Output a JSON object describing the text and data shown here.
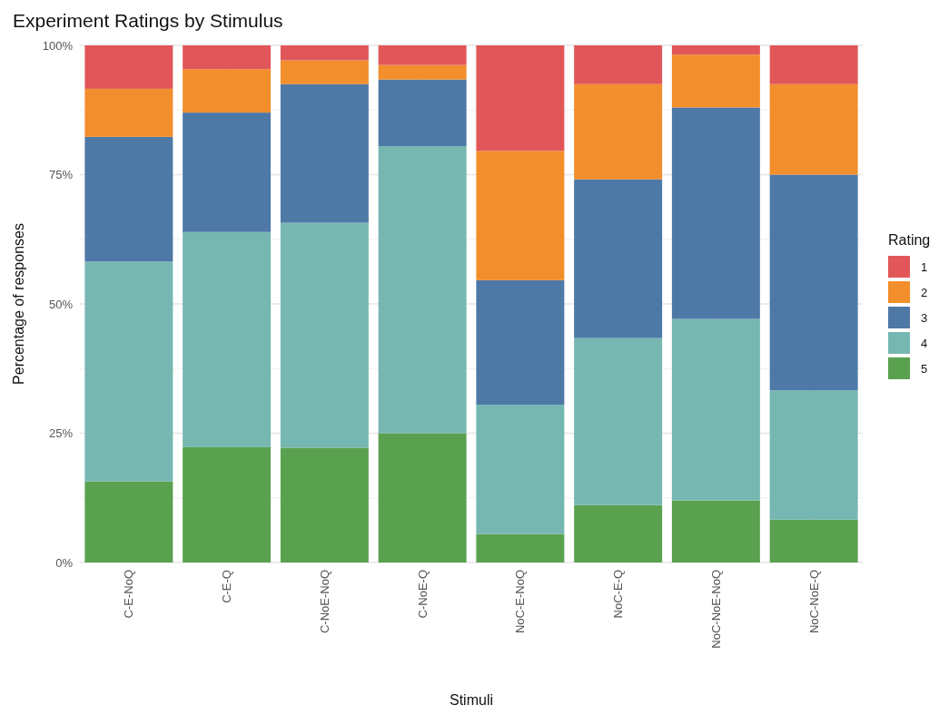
{
  "chart_data": {
    "type": "bar",
    "title": "Experiment Ratings by Stimulus",
    "xlabel": "Stimuli",
    "ylabel": "Percentage of responses",
    "legend_title": "Rating",
    "categories": [
      "C-E-NoQ",
      "C-E-Q",
      "C-NoE-NoQ",
      "C-NoE-Q",
      "NoC-E-NoQ",
      "NoC-E-Q",
      "NoC-NoE-NoQ",
      "NoC-NoE-Q"
    ],
    "stacked": true,
    "ylim": [
      0,
      100
    ],
    "yticks": [
      {
        "value": 0,
        "label": "0%"
      },
      {
        "value": 25,
        "label": "25%"
      },
      {
        "value": 50,
        "label": "50%"
      },
      {
        "value": 75,
        "label": "75%"
      },
      {
        "value": 100,
        "label": "100%"
      }
    ],
    "grid": true,
    "legend": "right",
    "series": [
      {
        "name": "5",
        "color": "#59a14f",
        "values": [
          15.7,
          22.3,
          22.2,
          25,
          5.5,
          11.1,
          12,
          8.3
        ]
      },
      {
        "name": "4",
        "color": "#76b7b2",
        "values": [
          42.5,
          41.6,
          43.5,
          55.5,
          25,
          32.3,
          35.1,
          25
        ]
      },
      {
        "name": "3",
        "color": "#4e79a7",
        "values": [
          24.1,
          23.1,
          26.8,
          12.9,
          24.1,
          30.7,
          40.9,
          41.7
        ]
      },
      {
        "name": "2",
        "color": "#f28e2b",
        "values": [
          9.3,
          8.4,
          4.6,
          2.8,
          25,
          18.4,
          10.2,
          17.5
        ]
      },
      {
        "name": "1",
        "color": "#e15759",
        "values": [
          8.4,
          4.6,
          2.9,
          3.8,
          20.4,
          7.5,
          1.8,
          7.5
        ]
      }
    ]
  }
}
